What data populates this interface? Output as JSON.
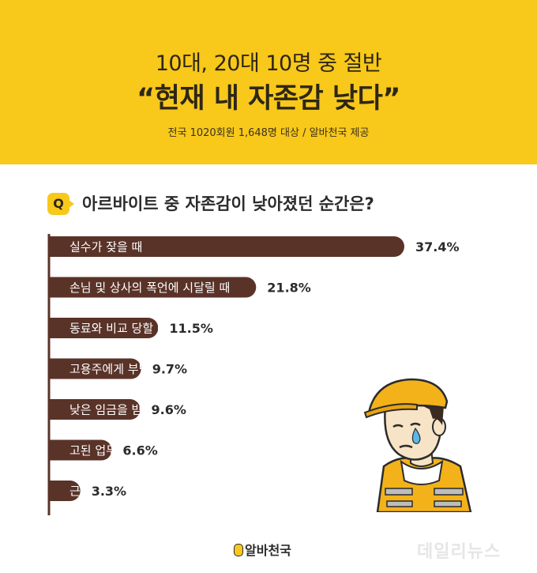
{
  "header": {
    "line1": "10대, 20대 10명 중 절반",
    "line2": "“현재 내 자존감 낮다”",
    "line3": "전국 1020회원 1,648명 대상 / 알바천국 제공"
  },
  "question": {
    "badge": "Q",
    "text": "아르바이트 중 자존감이 낮아졌던 순간은?"
  },
  "colors": {
    "brand_yellow": "#f8c81a",
    "bar_brown": "#5a3328",
    "axis": "#5a3328"
  },
  "chart_data": {
    "type": "bar",
    "orientation": "horizontal",
    "unit": "%",
    "categories": [
      "실수가 잦을 때",
      "손님 및 상사의 폭언에 시달릴 때",
      "동료와 비교 당할 때",
      "고용주에게 부당 대우를 받을 때",
      "낮은 임금을 받을 때",
      "고된 업무 강도에 시달릴 때",
      "근로 시간이 과다할 때"
    ],
    "values": [
      37.4,
      21.8,
      11.5,
      9.7,
      9.6,
      6.6,
      3.3
    ],
    "value_labels": [
      "37.4%",
      "21.8%",
      "11.5%",
      "9.7%",
      "9.6%",
      "6.6%",
      "3.3%"
    ]
  },
  "footer": {
    "logo_text": "알바천국",
    "watermark": "데일리뉴스"
  },
  "illustration": "worker-crying-icon"
}
